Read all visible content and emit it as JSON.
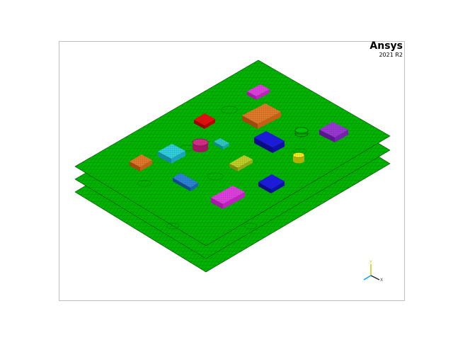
{
  "brand": {
    "name": "Ansys",
    "version": "2021 R2"
  },
  "triad": {
    "x_label": "X",
    "y_label": "Y"
  },
  "colors": {
    "board": "#00b400",
    "mesh": "#004400",
    "red": "#cc0000",
    "orange": "#dd6f1e",
    "magenta": "#cc22cc",
    "cyan": "#22c4d6",
    "teal": "#22aaaa",
    "blue": "#1a1ac8",
    "violet": "#8a28c4",
    "olive": "#aac020",
    "steelblue": "#2277cc",
    "pink": "#cc2277",
    "yellow": "#e0e010"
  },
  "icons": {
    "axis_triad": "xyz-triad-icon"
  }
}
